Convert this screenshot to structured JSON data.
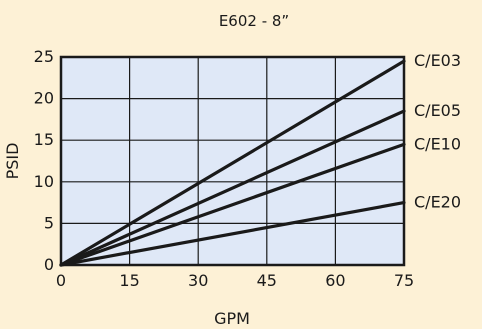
{
  "chart_data": {
    "type": "line",
    "title": "E602 - 8”",
    "xlabel": "GPM",
    "ylabel": "PSID",
    "xlim": [
      0,
      75
    ],
    "ylim": [
      0,
      25
    ],
    "xticks": [
      "0",
      "15",
      "30",
      "45",
      "60",
      "75"
    ],
    "yticks": [
      "0",
      "5",
      "10",
      "15",
      "20",
      "25"
    ],
    "grid": true,
    "series": [
      {
        "name": "C/E03",
        "x": [
          0,
          75
        ],
        "y": [
          0,
          24.5
        ]
      },
      {
        "name": "C/E05",
        "x": [
          0,
          75
        ],
        "y": [
          0,
          18.5
        ]
      },
      {
        "name": "C/E10",
        "x": [
          0,
          75
        ],
        "y": [
          0,
          14.5
        ]
      },
      {
        "name": "C/E20",
        "x": [
          0,
          75
        ],
        "y": [
          0,
          7.5
        ]
      }
    ],
    "colors": {
      "background": "#fdf1d6",
      "plot_area": "#dfe8f7",
      "lines": "#1a1a1a",
      "grid": "#1a1a1a"
    }
  }
}
